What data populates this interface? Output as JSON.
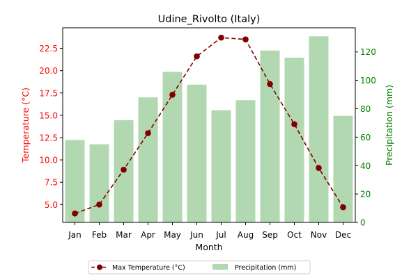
{
  "chart_data": {
    "type": "bar+line",
    "title": "Udine_Rivolto (Italy)",
    "xlabel": "Month",
    "categories": [
      "Jan",
      "Feb",
      "Mar",
      "Apr",
      "May",
      "Jun",
      "Jul",
      "Aug",
      "Sep",
      "Oct",
      "Nov",
      "Dec"
    ],
    "left_axis": {
      "label": "Temperature (°C)",
      "color": "#ff0000",
      "ylim": [
        3.0,
        24.8
      ],
      "ticks": [
        "5.0",
        "7.5",
        "10.0",
        "12.5",
        "15.0",
        "17.5",
        "20.0",
        "22.5"
      ]
    },
    "right_axis": {
      "label": "Precipitation (mm)",
      "color": "#008000",
      "ylim": [
        0,
        137
      ],
      "ticks": [
        "0",
        "20",
        "40",
        "60",
        "80",
        "100",
        "120"
      ]
    },
    "series": [
      {
        "name": "Max Temperature (°C)",
        "kind": "line",
        "axis": "left",
        "color": "#800000",
        "style": "dashed",
        "marker": "circle",
        "values": [
          4.0,
          5.0,
          8.9,
          13.0,
          17.3,
          21.6,
          23.7,
          23.5,
          18.5,
          14.0,
          9.1,
          4.7
        ]
      },
      {
        "name": "Precipitation (mm)",
        "kind": "bar",
        "axis": "right",
        "color": "#b2d8b2",
        "values": [
          58,
          55,
          72,
          88,
          106,
          97,
          79,
          86,
          121,
          116,
          131,
          75
        ]
      }
    ],
    "legend": {
      "position": "bottom-center",
      "columns": 2
    }
  }
}
